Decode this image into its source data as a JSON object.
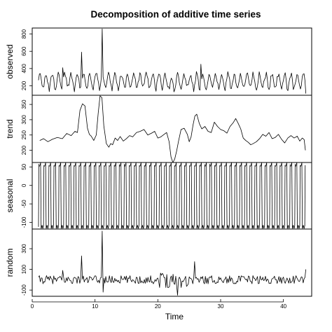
{
  "chart_data": {
    "type": "line",
    "title": "Decomposition of additive time series",
    "xlabel": "Time",
    "xlim": [
      0,
      44.5
    ],
    "xticks": [
      0,
      10,
      20,
      30,
      40
    ],
    "x_start": 1,
    "x_end": 43.5,
    "frequency": 7,
    "panels": [
      {
        "name": "observed",
        "ylabel": "observed",
        "ylim": [
          90,
          870
        ],
        "yticks": [
          200,
          400,
          600,
          800
        ],
        "baseline": 255,
        "amplitude": 85,
        "spikes": [
          {
            "x": 7.85,
            "y": 590
          },
          {
            "x": 11.15,
            "y": 860
          },
          {
            "x": 4.9,
            "y": 410
          },
          {
            "x": 26.9,
            "y": 450
          }
        ],
        "x": [
          1,
          5,
          8,
          11.15,
          15,
          20,
          22,
          25,
          30,
          35,
          40,
          43.5
        ]
      },
      {
        "name": "trend",
        "ylabel": "trend",
        "ylim": [
          160,
          380
        ],
        "yticks": [
          150,
          200,
          250,
          300,
          350
        ],
        "x": [
          1.2,
          1.8,
          2.5,
          3.2,
          4,
          4.8,
          5.5,
          6.2,
          6.8,
          7.2,
          7.6,
          8.0,
          8.4,
          8.8,
          9.1,
          9.4,
          9.8,
          10.2,
          10.5,
          10.8,
          11.1,
          11.4,
          11.8,
          12.2,
          12.5,
          12.8,
          13.2,
          13.6,
          14.0,
          14.5,
          15.0,
          15.5,
          16.0,
          16.6,
          17.2,
          17.8,
          18.4,
          19.0,
          19.5,
          20.0,
          20.5,
          21.0,
          21.4,
          21.8,
          22.1,
          22.4,
          22.7,
          23.0,
          23.3,
          23.7,
          24.2,
          24.7,
          25.0,
          25.3,
          25.6,
          25.9,
          26.2,
          26.6,
          27.0,
          27.5,
          28.0,
          28.5,
          29.0,
          29.5,
          30.0,
          30.5,
          31.0,
          31.5,
          32.0,
          32.4,
          32.8,
          33.2,
          33.6,
          34.0,
          34.4,
          34.8,
          35.2,
          35.7,
          36.2,
          36.7,
          37.2,
          37.7,
          38.2,
          38.7,
          39.2,
          39.7,
          40.2,
          40.7,
          41.2,
          41.7,
          42.2,
          42.6,
          43.0,
          43.3,
          43.5
        ],
        "y": [
          232,
          238,
          228,
          236,
          242,
          238,
          255,
          248,
          262,
          258,
          330,
          352,
          345,
          272,
          252,
          246,
          232,
          250,
          320,
          378,
          372,
          280,
          222,
          210,
          222,
          218,
          240,
          232,
          245,
          230,
          238,
          248,
          244,
          258,
          262,
          268,
          250,
          256,
          262,
          240,
          244,
          252,
          258,
          228,
          178,
          160,
          172,
          198,
          230,
          268,
          272,
          252,
          228,
          244,
          282,
          312,
          318,
          288,
          270,
          278,
          262,
          258,
          292,
          278,
          268,
          264,
          256,
          278,
          290,
          304,
          288,
          270,
          240,
          232,
          226,
          218,
          222,
          228,
          238,
          252,
          246,
          258,
          238,
          242,
          252,
          236,
          224,
          240,
          248,
          240,
          246,
          230,
          240,
          235,
          200
        ]
      },
      {
        "name": "seasonal",
        "ylabel": "seasonal",
        "ylim": [
          -118,
          62
        ],
        "yticks": [
          -100,
          -50,
          0,
          50
        ],
        "peak": 58,
        "trough": -112,
        "period": 0.8,
        "x": [
          1,
          43.5
        ]
      },
      {
        "name": "random",
        "ylabel": "random",
        "ylim": [
          -160,
          490
        ],
        "yticks": [
          -100,
          100,
          300
        ],
        "spikes": [
          {
            "x": 7.85,
            "y": 230
          },
          {
            "x": 11.15,
            "y": 470
          },
          {
            "x": 11.35,
            "y": -120
          },
          {
            "x": 25.9,
            "y": 175
          },
          {
            "x": 23.2,
            "y": -150
          },
          {
            "x": 20.9,
            "y": 50
          },
          {
            "x": 4.9,
            "y": 90
          }
        ],
        "x": [
          1,
          43.5
        ]
      }
    ]
  }
}
